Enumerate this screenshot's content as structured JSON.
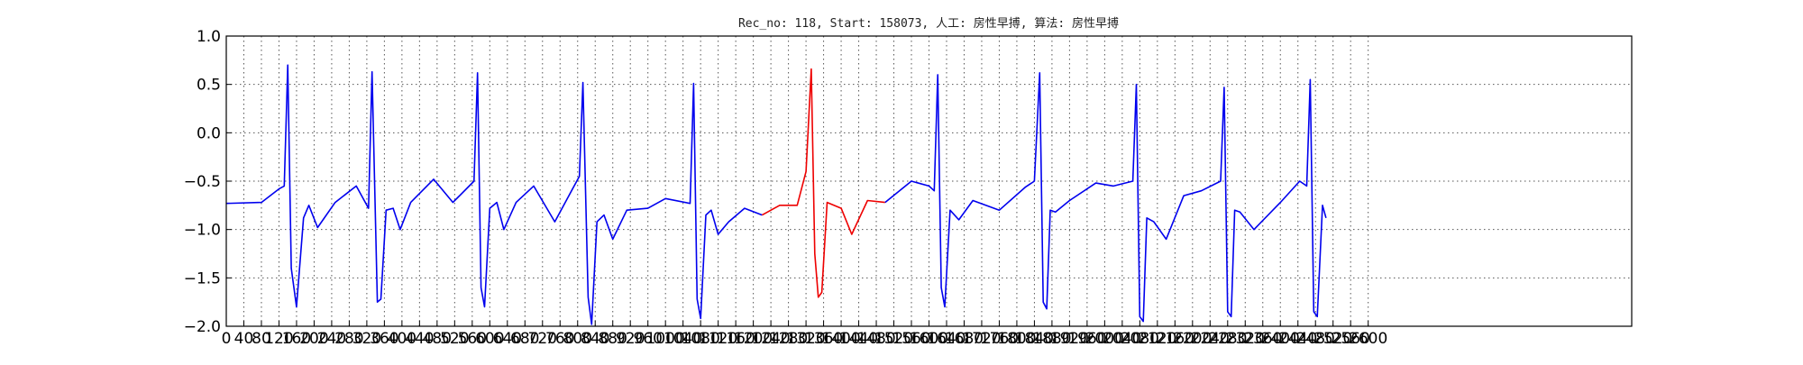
{
  "chart_data": {
    "type": "line",
    "title": "Rec_no: 118, Start: 158073, 人工: 房性早搏, 算法: 房性早搏",
    "xlabel": "",
    "ylabel": "",
    "xlim": [
      0,
      1600
    ],
    "ylim": [
      -2.0,
      1.0
    ],
    "grid": true,
    "legend": "none",
    "y_ticks": [
      {
        "value": 1.0,
        "label": "1.0"
      },
      {
        "value": 0.5,
        "label": "0.5"
      },
      {
        "value": 0.0,
        "label": "0.0"
      },
      {
        "value": -0.5,
        "label": "−0.5"
      },
      {
        "value": -1.0,
        "label": "−1.0"
      },
      {
        "value": -1.5,
        "label": "−1.5"
      },
      {
        "value": -2.0,
        "label": "−2.0"
      }
    ],
    "x_ticks": [
      {
        "value": 0,
        "label": "0"
      },
      {
        "value": 20,
        "label": "40"
      },
      {
        "value": 40,
        "label": "80"
      },
      {
        "value": 60,
        "label": "120"
      },
      {
        "value": 80,
        "label": "160"
      },
      {
        "value": 100,
        "label": "200"
      },
      {
        "value": 120,
        "label": "240"
      },
      {
        "value": 140,
        "label": "280"
      },
      {
        "value": 160,
        "label": "320"
      },
      {
        "value": 180,
        "label": "360"
      },
      {
        "value": 200,
        "label": "400"
      },
      {
        "value": 220,
        "label": "440"
      },
      {
        "value": 240,
        "label": "480"
      },
      {
        "value": 260,
        "label": "520"
      },
      {
        "value": 280,
        "label": "560"
      },
      {
        "value": 300,
        "label": "600"
      },
      {
        "value": 320,
        "label": "640"
      },
      {
        "value": 340,
        "label": "680"
      },
      {
        "value": 360,
        "label": "720"
      },
      {
        "value": 380,
        "label": "760"
      },
      {
        "value": 400,
        "label": "800"
      },
      {
        "value": 420,
        "label": "840"
      },
      {
        "value": 440,
        "label": "880"
      },
      {
        "value": 460,
        "label": "920"
      },
      {
        "value": 480,
        "label": "960"
      },
      {
        "value": 500,
        "label": "1000"
      },
      {
        "value": 520,
        "label": "1040"
      },
      {
        "value": 540,
        "label": "1080"
      },
      {
        "value": 560,
        "label": "1120"
      },
      {
        "value": 580,
        "label": "1160"
      },
      {
        "value": 600,
        "label": "1200"
      },
      {
        "value": 620,
        "label": "1240"
      },
      {
        "value": 640,
        "label": "1280"
      },
      {
        "value": 660,
        "label": "1320"
      },
      {
        "value": 680,
        "label": "1360"
      },
      {
        "value": 700,
        "label": "1400"
      },
      {
        "value": 720,
        "label": "1440"
      },
      {
        "value": 740,
        "label": "1480"
      },
      {
        "value": 760,
        "label": "1520"
      },
      {
        "value": 780,
        "label": "1560"
      },
      {
        "value": 800,
        "label": "1600"
      },
      {
        "value": 820,
        "label": "1640"
      },
      {
        "value": 840,
        "label": "1680"
      },
      {
        "value": 860,
        "label": "1720"
      },
      {
        "value": 880,
        "label": "1760"
      },
      {
        "value": 900,
        "label": "1800"
      },
      {
        "value": 920,
        "label": "1840"
      },
      {
        "value": 940,
        "label": "1880"
      },
      {
        "value": 960,
        "label": "1920"
      },
      {
        "value": 980,
        "label": "1960"
      },
      {
        "value": 1000,
        "label": "2000"
      },
      {
        "value": 1020,
        "label": "2040"
      },
      {
        "value": 1040,
        "label": "2080"
      },
      {
        "value": 1060,
        "label": "2120"
      },
      {
        "value": 1080,
        "label": "2160"
      },
      {
        "value": 1100,
        "label": "2200"
      },
      {
        "value": 1120,
        "label": "2240"
      },
      {
        "value": 1140,
        "label": "2280"
      },
      {
        "value": 1160,
        "label": "2320"
      },
      {
        "value": 1180,
        "label": "2360"
      },
      {
        "value": 1200,
        "label": "2400"
      },
      {
        "value": 1220,
        "label": "2440"
      },
      {
        "value": 1240,
        "label": "2480"
      },
      {
        "value": 1260,
        "label": "2520"
      },
      {
        "value": 1280,
        "label": "2560"
      },
      {
        "value": 1300,
        "label": "2600"
      }
    ],
    "series": [
      {
        "color": "#0000ee",
        "x": [
          0,
          40,
          60,
          66,
          70,
          74,
          80,
          88,
          94,
          104,
          124,
          148,
          162,
          166,
          172,
          176,
          182,
          190,
          198,
          210,
          236,
          258,
          282,
          286,
          290,
          294,
          300,
          308,
          316,
          330,
          350,
          374,
          402,
          406,
          412,
          416,
          422,
          430,
          440,
          456,
          480,
          500,
          528,
          532,
          536,
          540,
          546,
          552,
          560,
          572,
          590,
          610
        ],
        "y": [
          -0.73,
          -0.72,
          -0.58,
          -0.55,
          0.7,
          -1.4,
          -1.8,
          -0.88,
          -0.75,
          -0.98,
          -0.72,
          -0.55,
          -0.78,
          0.63,
          -1.75,
          -1.72,
          -0.8,
          -0.78,
          -1.0,
          -0.72,
          -0.48,
          -0.72,
          -0.5,
          0.62,
          -1.6,
          -1.8,
          -0.78,
          -0.72,
          -1.0,
          -0.72,
          -0.55,
          -0.92,
          -0.45,
          0.52,
          -1.7,
          -1.98,
          -0.92,
          -0.85,
          -1.1,
          -0.8,
          -0.78,
          -0.68,
          -0.73,
          0.51,
          -1.72,
          -1.92,
          -0.85,
          -0.8,
          -1.05,
          -0.92,
          -0.78,
          -0.85
        ]
      },
      {
        "color": "#ee0000",
        "x": [
          610,
          630,
          650,
          660,
          666,
          670,
          674,
          678,
          684,
          700,
          712,
          730,
          750
        ],
        "y": [
          -0.85,
          -0.75,
          -0.75,
          -0.4,
          0.66,
          -1.25,
          -1.7,
          -1.65,
          -0.72,
          -0.78,
          -1.05,
          -0.7,
          -0.72
        ]
      },
      {
        "color": "#0000ee",
        "x": [
          750,
          780,
          800,
          806,
          810,
          814,
          818,
          824,
          834,
          850,
          880,
          910,
          920,
          926,
          930,
          934,
          938,
          944,
          960,
          990,
          1010,
          1032,
          1036,
          1040,
          1044,
          1048,
          1056,
          1070,
          1090,
          1110,
          1132,
          1136,
          1140,
          1144,
          1148,
          1154,
          1170,
          1200,
          1222,
          1230,
          1234,
          1238,
          1242,
          1248,
          1252
        ],
        "y": [
          -0.72,
          -0.5,
          -0.55,
          -0.6,
          0.6,
          -1.6,
          -1.8,
          -0.8,
          -0.9,
          -0.7,
          -0.8,
          -0.56,
          -0.5,
          0.62,
          -1.75,
          -1.82,
          -0.8,
          -0.82,
          -0.7,
          -0.52,
          -0.55,
          -0.5,
          0.5,
          -1.9,
          -1.95,
          -0.88,
          -0.92,
          -1.1,
          -0.65,
          -0.6,
          -0.5,
          0.47,
          -1.85,
          -1.9,
          -0.8,
          -0.82,
          -1.0,
          -0.72,
          -0.5,
          -0.55,
          0.55,
          -1.85,
          -1.9,
          -0.75,
          -0.88
        ]
      }
    ]
  }
}
